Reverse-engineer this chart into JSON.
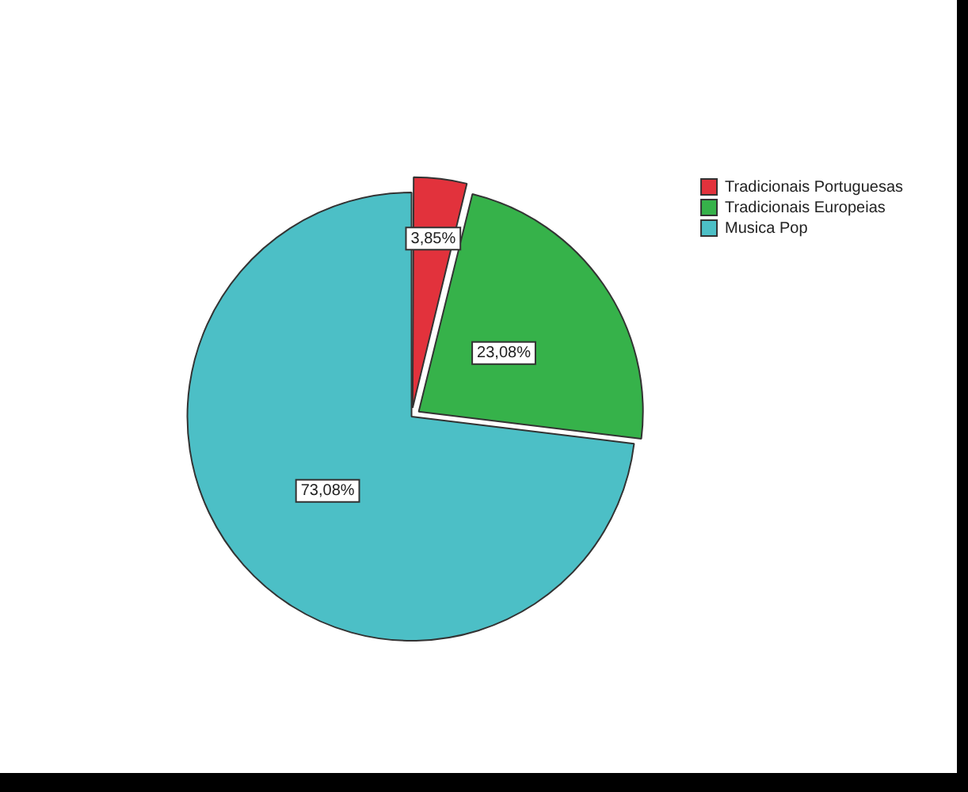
{
  "chart_data": {
    "type": "pie",
    "categories": [
      "Tradicionais Portuguesas",
      "Tradicionais Europeias",
      "Musica Pop"
    ],
    "values": [
      3.85,
      23.08,
      73.08
    ],
    "colors": [
      "#e2323c",
      "#36b24a",
      "#4cbfc6"
    ],
    "value_labels": [
      "3,85%",
      "23,08%",
      "73,08%"
    ],
    "legend": "top right"
  }
}
